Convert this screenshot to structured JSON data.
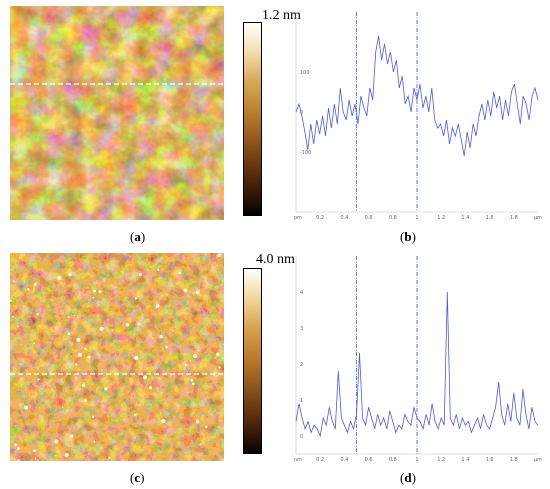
{
  "panels": [
    {
      "id": "a",
      "label_open": "(",
      "label_letter": "a",
      "label_close": ")",
      "colorbar_max": "1.2 nm"
    },
    {
      "id": "b",
      "label_open": "(",
      "label_letter": "b",
      "label_close": ")"
    },
    {
      "id": "c",
      "label_open": "(",
      "label_letter": "c",
      "label_close": ")",
      "colorbar_max": "4.0 nm"
    },
    {
      "id": "d",
      "label_open": "(",
      "label_letter": "d",
      "label_close": ")"
    }
  ],
  "colors": {
    "profile_line": "#4f5bd9",
    "cursor_line": "#3b55d6",
    "scan_line": "#ffffff",
    "axis": "#bfbfbf"
  },
  "chart_data": [
    {
      "type": "line",
      "panel": "b",
      "xlabel": "µm",
      "ylabel": "pm",
      "x_unit_label": "µm",
      "y_unit_label": "pm",
      "xlim": [
        0,
        2
      ],
      "ylim": [
        -250,
        250
      ],
      "x_ticks": [
        "0.2",
        "0.4",
        "0.6",
        "0.8",
        "1",
        "1.2",
        "1.4",
        "1.6",
        "1.8"
      ],
      "y_ticks": [
        "100",
        "0",
        "-100"
      ],
      "cursors": [
        0.5,
        1.0
      ],
      "y_values": [
        0,
        20,
        -10,
        -50,
        -95,
        -30,
        -80,
        -20,
        -55,
        -10,
        -60,
        10,
        -40,
        20,
        -30,
        60,
        0,
        -20,
        30,
        -10,
        20,
        -30,
        40,
        10,
        -10,
        60,
        30,
        150,
        190,
        130,
        170,
        120,
        150,
        100,
        130,
        60,
        90,
        20,
        40,
        0,
        60,
        30,
        70,
        10,
        40,
        0,
        60,
        -20,
        -40,
        -30,
        -60,
        -20,
        -80,
        -40,
        -60,
        -30,
        -70,
        -110,
        -50,
        -90,
        -30,
        -60,
        -10,
        20,
        -20,
        30,
        -10,
        50,
        10,
        40,
        -20,
        30,
        -10,
        50,
        70,
        20,
        -30,
        40,
        20,
        -20,
        40,
        60,
        30
      ]
    },
    {
      "type": "line",
      "panel": "d",
      "xlabel": "µm",
      "ylabel": "nm",
      "x_unit_label": "µm",
      "y_unit_label": "nm",
      "xlim": [
        0,
        2
      ],
      "ylim": [
        -0.5,
        5
      ],
      "x_ticks": [
        "0.2",
        "0.4",
        "0.6",
        "0.8",
        "1",
        "1.2",
        "1.4",
        "1.6",
        "1.8"
      ],
      "y_ticks": [
        "4",
        "3",
        "2",
        "1",
        "0"
      ],
      "cursors": [
        0.5,
        1.0
      ],
      "y_values": [
        0.4,
        0.9,
        0.5,
        0.2,
        0.4,
        0.1,
        0.3,
        0.2,
        0.0,
        0.5,
        0.3,
        0.8,
        0.4,
        0.2,
        1.8,
        0.5,
        0.3,
        0.1,
        0.4,
        0.2,
        0.6,
        2.3,
        0.5,
        0.3,
        0.8,
        0.5,
        0.2,
        0.6,
        0.3,
        0.5,
        0.2,
        0.7,
        0.4,
        0.1,
        0.3,
        0.2,
        0.6,
        0.4,
        0.3,
        0.8,
        0.5,
        0.4,
        0.2,
        0.6,
        0.3,
        0.9,
        0.4,
        0.2,
        0.5,
        0.3,
        4.0,
        0.5,
        0.3,
        0.6,
        0.2,
        0.5,
        0.3,
        0.4,
        0.1,
        0.3,
        0.5,
        0.2,
        0.6,
        0.3,
        0.2,
        0.5,
        0.8,
        1.5,
        0.6,
        0.3,
        0.9,
        0.4,
        1.2,
        0.5,
        0.3,
        1.3,
        0.6,
        0.2,
        0.8,
        0.4,
        0.3
      ]
    }
  ]
}
